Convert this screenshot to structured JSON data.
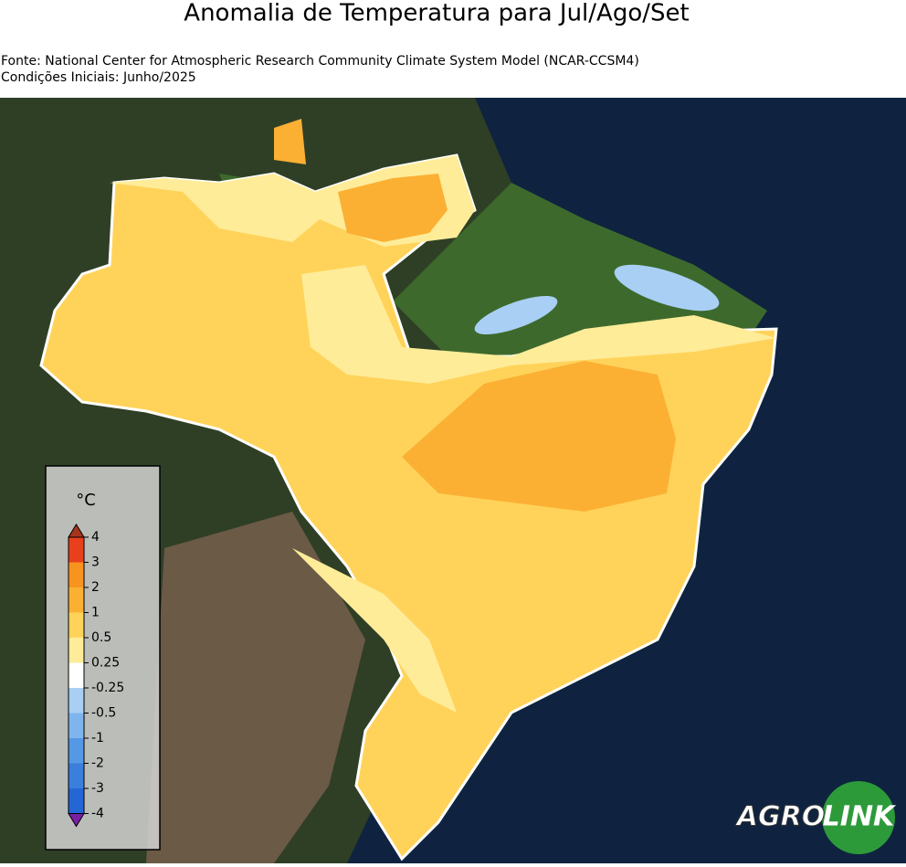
{
  "title": "Anomalia de Temperatura para Jul/Ago/Set",
  "source": "Fonte: National Center for Atmospheric Research Community Climate System Model (NCAR-CCSM4)",
  "initial_conditions": "Condições Iniciais: Junho/2025",
  "colorbar": {
    "unit": "°C",
    "ticks": [
      4,
      3,
      2,
      1,
      0.5,
      0.25,
      -0.25,
      -0.5,
      -1,
      -2,
      -3,
      -4
    ],
    "colors": [
      "#e8401c",
      "#f7931e",
      "#fbb034",
      "#ffd35a",
      "#ffec99",
      "#ffffff",
      "#a9cff5",
      "#7fb5ee",
      "#5598e6",
      "#3a7fdc",
      "#2466d6"
    ],
    "extend_colors": [
      "#a8331c",
      "#7a1fa2"
    ]
  },
  "logo": {
    "left": "AGRO",
    "right": "LINK"
  }
}
